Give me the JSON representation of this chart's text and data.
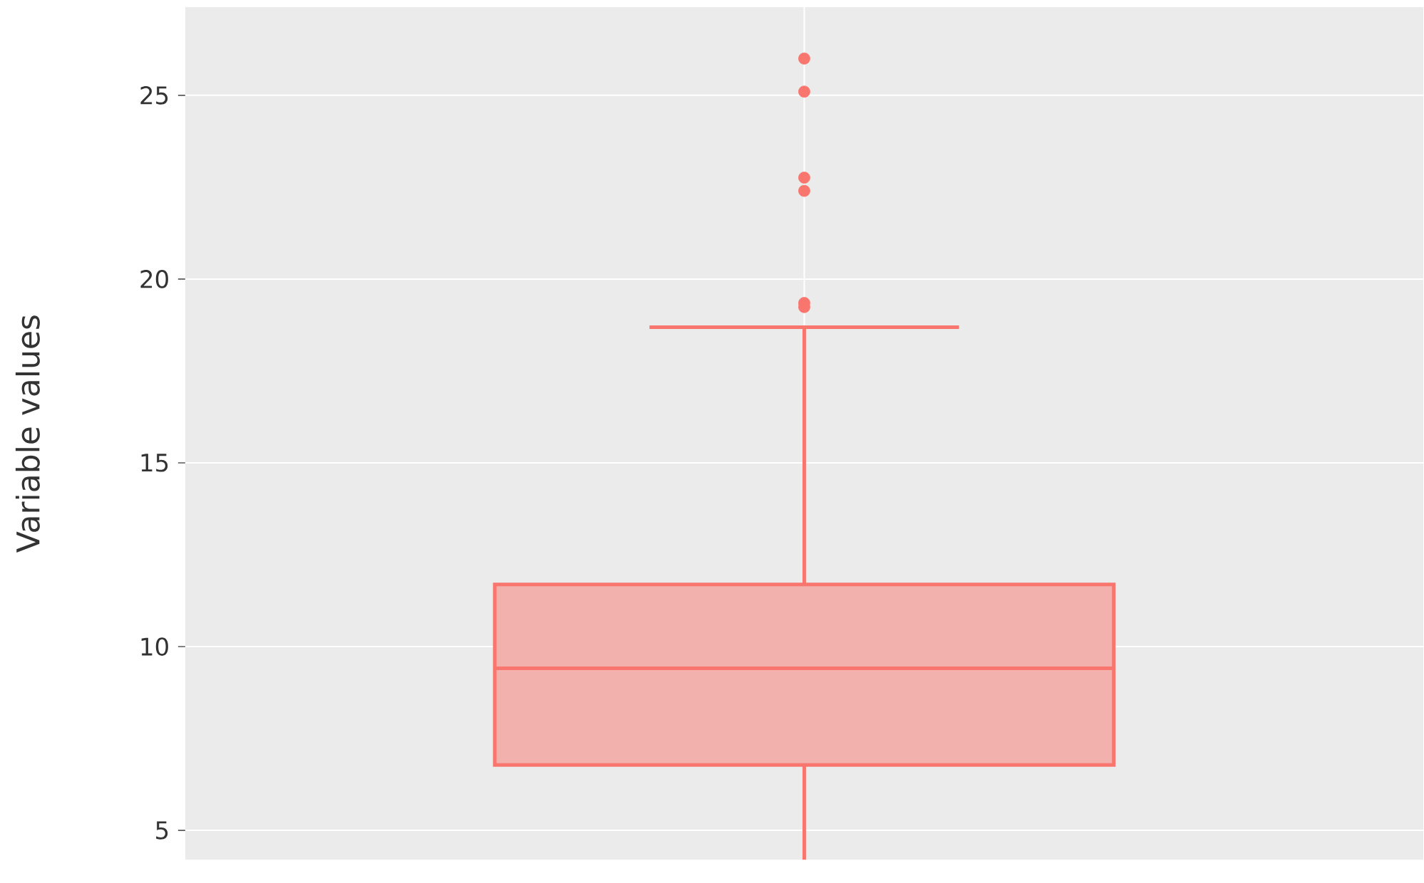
{
  "chart_data": {
    "type": "box",
    "ylabel": "Variable values",
    "categories": [
      null
    ],
    "color": "#f8766d",
    "boxes": [
      {
        "low": 4.2,
        "q1": 6.78,
        "median": 9.41,
        "q3": 11.69,
        "high": 18.69,
        "outliers": [
          26.0,
          25.1,
          22.76,
          22.4,
          19.35,
          19.24
        ]
      }
    ],
    "ylim": [
      4.2,
      27.4
    ],
    "yticks": [
      5,
      10,
      15,
      20,
      25
    ],
    "grid": true
  }
}
